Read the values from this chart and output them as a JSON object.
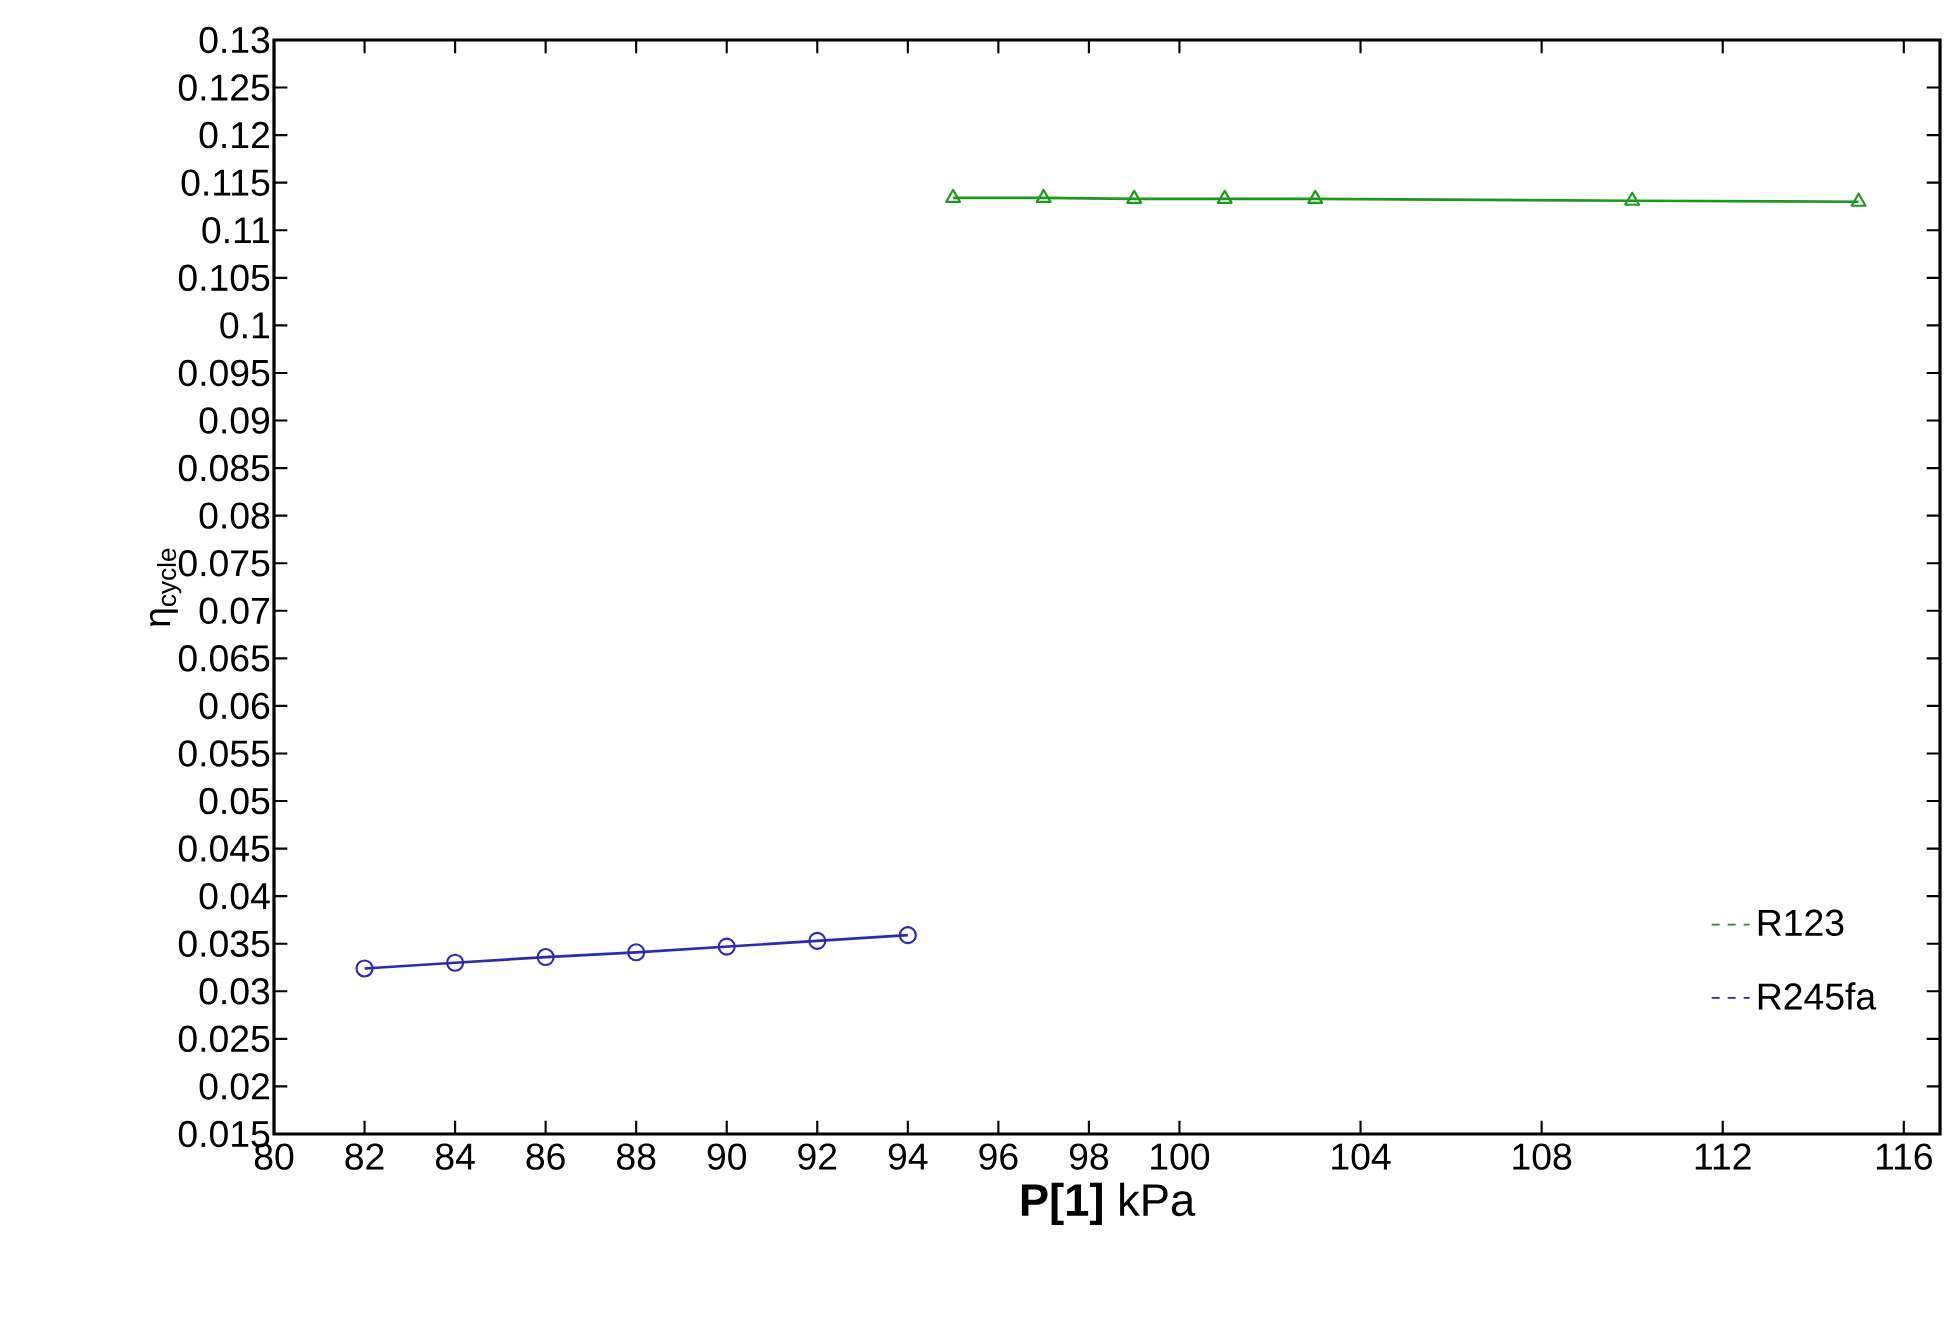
{
  "chart_data": {
    "type": "line",
    "xlabel": "**P[1]** kPa",
    "ylabel": "η$_{cycle}$",
    "xlim": [
      80,
      116.8
    ],
    "ylim": [
      0.015,
      0.13
    ],
    "xticks": [
      80,
      82,
      84,
      86,
      88,
      90,
      92,
      94,
      96,
      98,
      100,
      104,
      108,
      112,
      116
    ],
    "yticks": [
      0.015,
      0.02,
      0.025,
      0.03,
      0.035,
      0.04,
      0.045,
      0.05,
      0.055,
      0.06,
      0.065,
      0.07,
      0.075,
      0.08,
      0.085,
      0.09,
      0.095,
      0.1,
      0.105,
      0.11,
      0.115,
      0.12,
      0.125,
      0.13
    ],
    "grid": false,
    "legend": "bottom right",
    "line_style": "solid",
    "series": [
      {
        "name": "R123",
        "color": "#1a9a1a",
        "marker": "triangle",
        "x": [
          95,
          97,
          99,
          101,
          103,
          110,
          115
        ],
        "values": [
          0.1134,
          0.1134,
          0.1133,
          0.1133,
          0.1133,
          0.1131,
          0.113
        ]
      },
      {
        "name": "R245fa",
        "color": "#2a2ab8",
        "marker": "circle",
        "x": [
          82,
          84,
          86,
          88,
          90,
          92,
          94
        ],
        "values": [
          0.0324,
          0.033,
          0.0336,
          0.0341,
          0.0347,
          0.0353,
          0.0359
        ]
      }
    ]
  }
}
